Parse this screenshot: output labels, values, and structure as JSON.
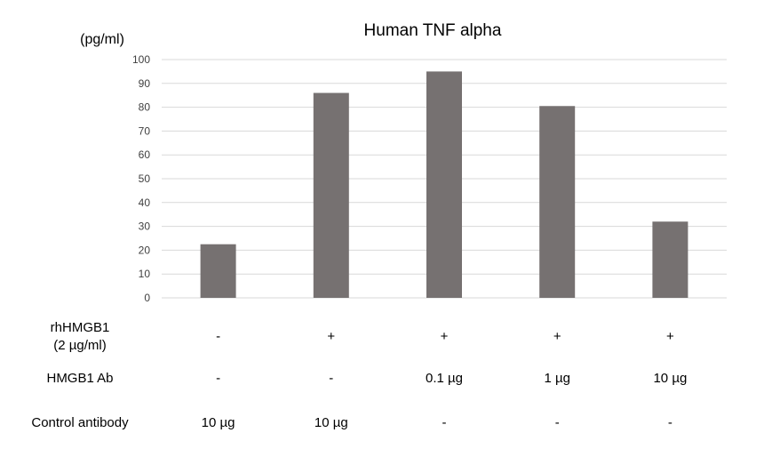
{
  "chart_data": {
    "type": "bar",
    "title": "Human TNF alpha",
    "ylabel": "(pg/ml)",
    "ylim": [
      0,
      100
    ],
    "yticks": [
      0,
      10,
      20,
      30,
      40,
      50,
      60,
      70,
      80,
      90,
      100
    ],
    "grid": true,
    "values": [
      22.5,
      86,
      95,
      80.5,
      32
    ],
    "color": "#767171"
  },
  "table": {
    "rows": [
      {
        "label_lines": [
          "rhHMGB1",
          "(2 µg/ml)"
        ],
        "cells": [
          "-",
          "+",
          "+",
          "+",
          "+"
        ]
      },
      {
        "label_lines": [
          "HMGB1 Ab"
        ],
        "cells": [
          "-",
          "-",
          "0.1 µg",
          "1 µg",
          "10 µg"
        ]
      },
      {
        "label_lines": [
          "Control antibody"
        ],
        "cells": [
          "10 µg",
          "10 µg",
          "-",
          "-",
          "-"
        ]
      }
    ]
  }
}
